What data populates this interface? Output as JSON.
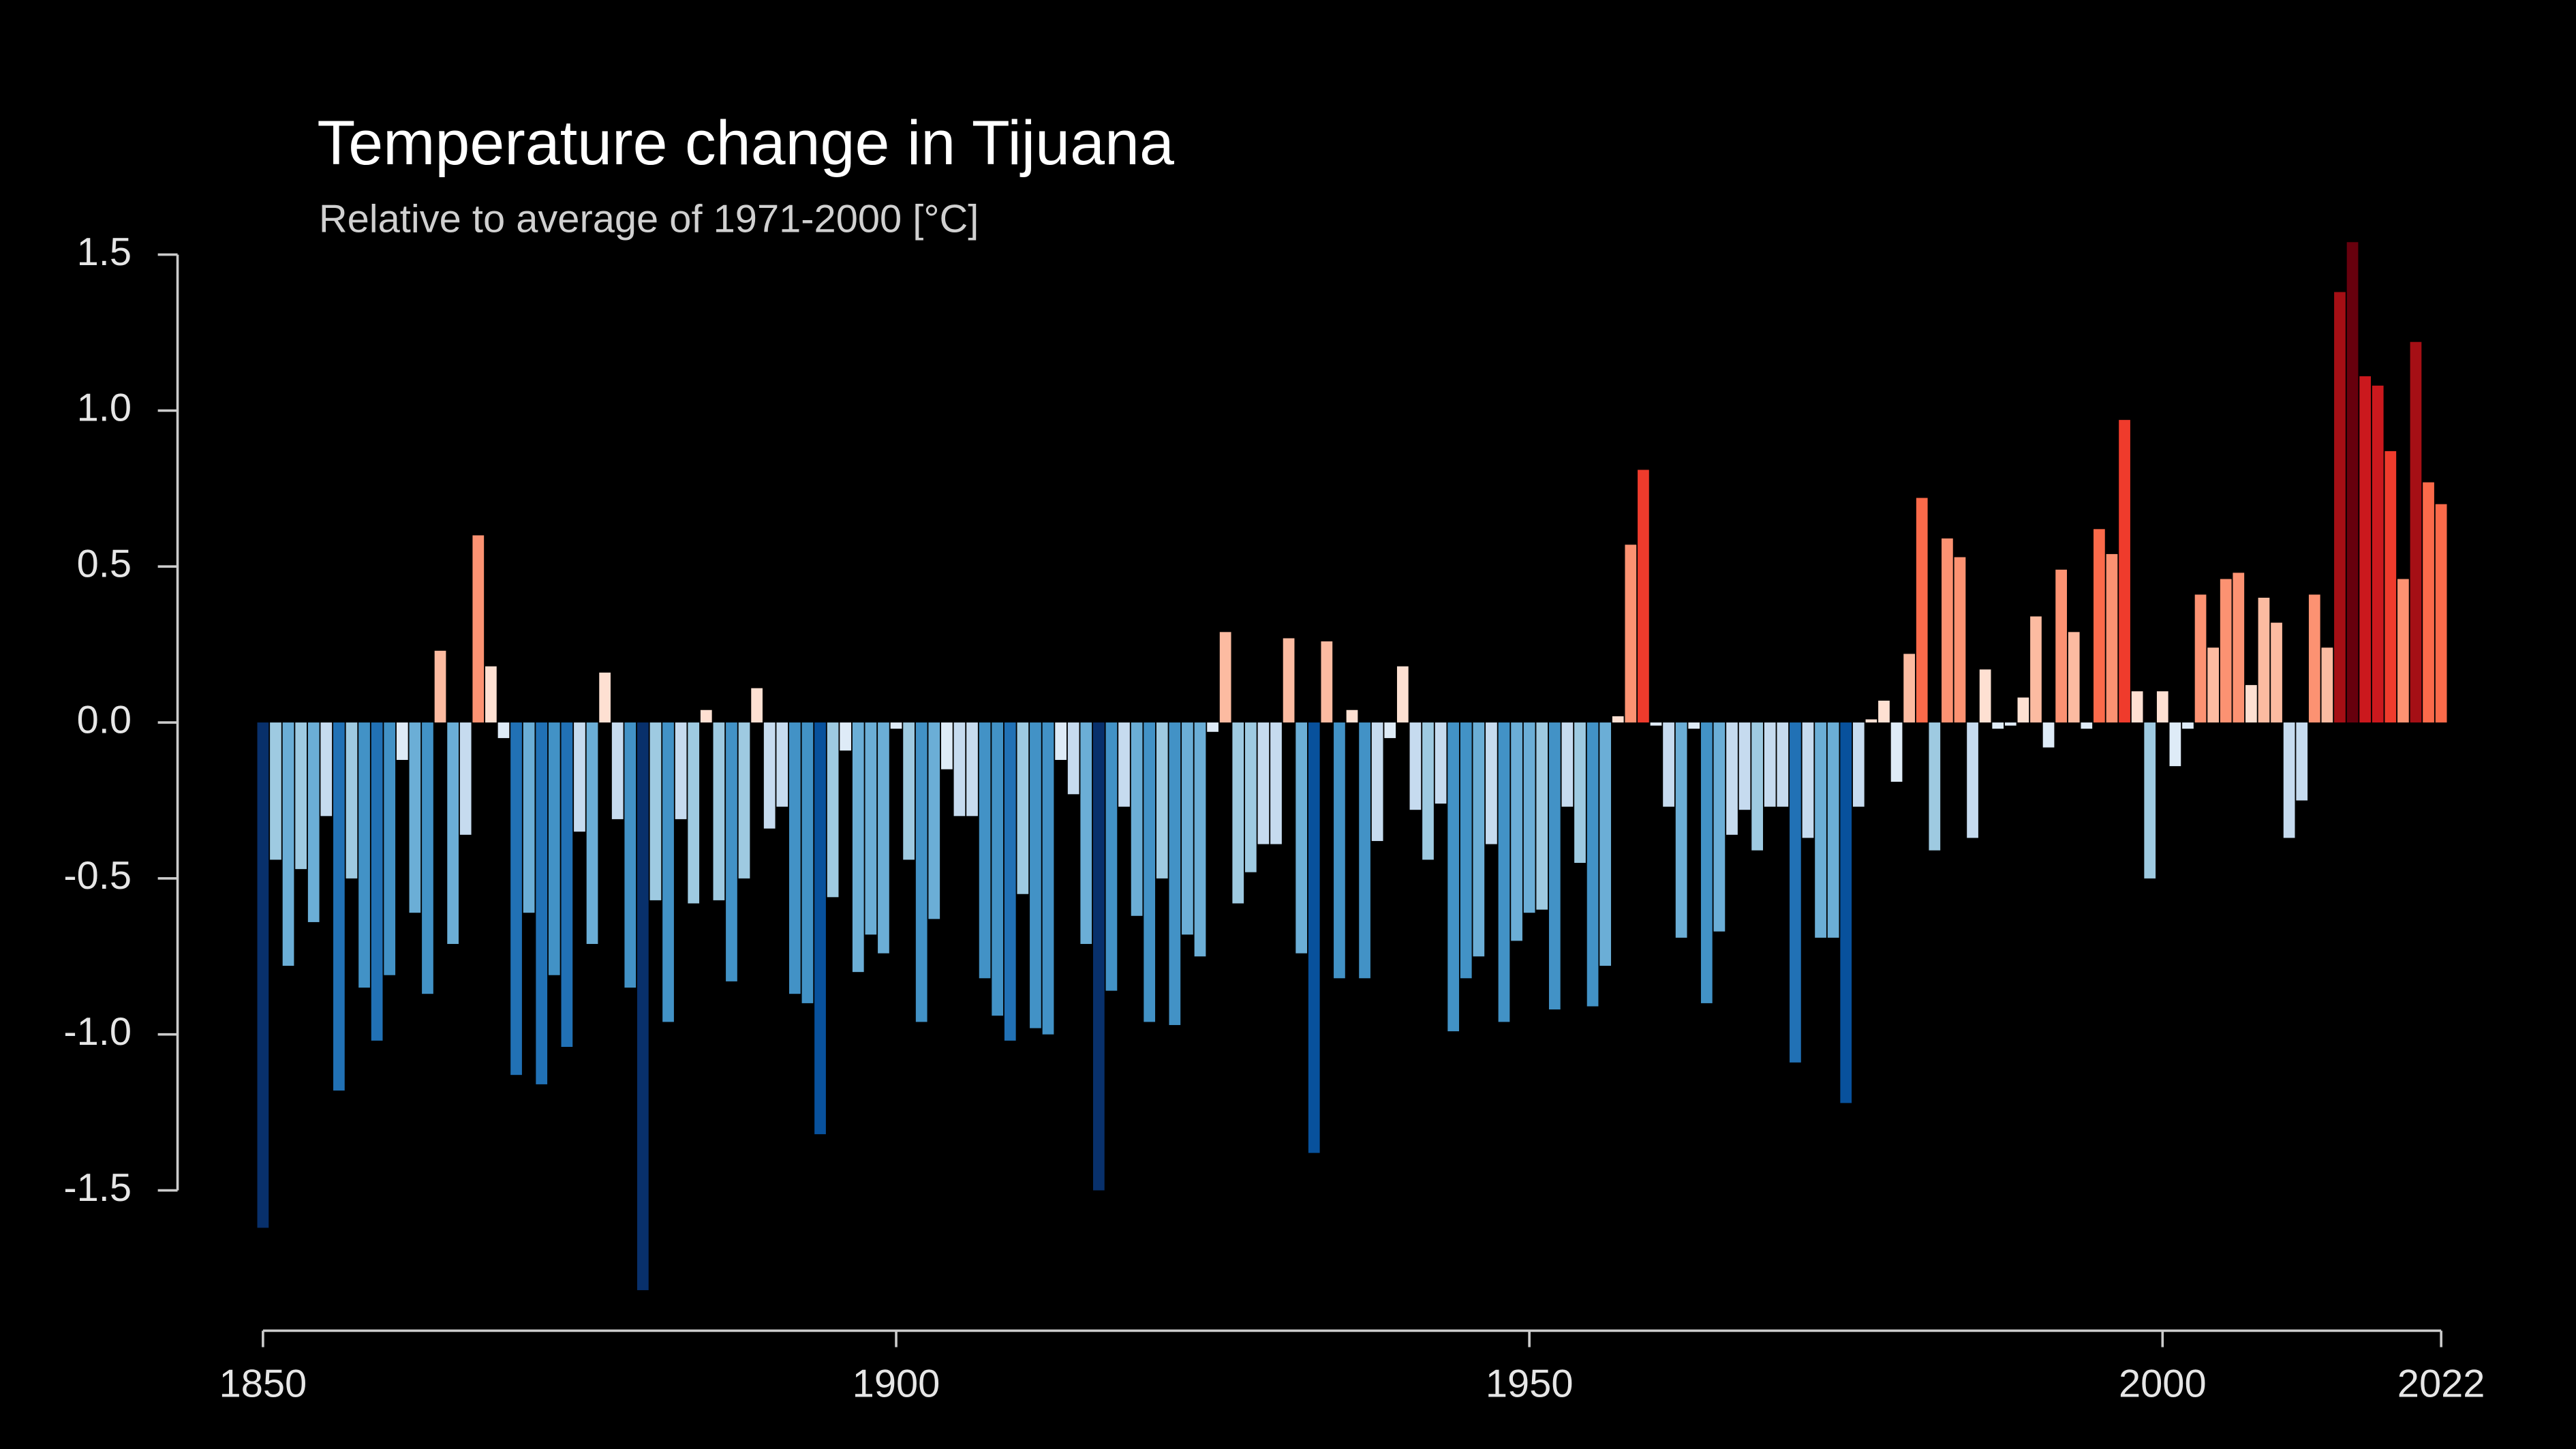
{
  "chart_data": {
    "type": "bar",
    "title": "Temperature change in Tijuana",
    "subtitle": "Relative to average of 1971-2000  [°C]",
    "x": [
      1850,
      1851,
      1852,
      1853,
      1854,
      1855,
      1856,
      1857,
      1858,
      1859,
      1860,
      1861,
      1862,
      1863,
      1864,
      1865,
      1866,
      1867,
      1868,
      1869,
      1870,
      1871,
      1872,
      1873,
      1874,
      1875,
      1876,
      1877,
      1878,
      1879,
      1880,
      1881,
      1882,
      1883,
      1884,
      1885,
      1886,
      1887,
      1888,
      1889,
      1890,
      1891,
      1892,
      1893,
      1894,
      1895,
      1896,
      1897,
      1898,
      1899,
      1900,
      1901,
      1902,
      1903,
      1904,
      1905,
      1906,
      1907,
      1908,
      1909,
      1910,
      1911,
      1912,
      1913,
      1914,
      1915,
      1916,
      1917,
      1918,
      1919,
      1920,
      1921,
      1922,
      1923,
      1924,
      1925,
      1926,
      1927,
      1928,
      1929,
      1930,
      1931,
      1932,
      1933,
      1934,
      1935,
      1936,
      1937,
      1938,
      1939,
      1940,
      1941,
      1942,
      1943,
      1944,
      1945,
      1946,
      1947,
      1948,
      1949,
      1950,
      1951,
      1952,
      1953,
      1954,
      1955,
      1956,
      1957,
      1958,
      1959,
      1960,
      1961,
      1962,
      1963,
      1964,
      1965,
      1966,
      1967,
      1968,
      1969,
      1970,
      1971,
      1972,
      1973,
      1974,
      1975,
      1976,
      1977,
      1978,
      1979,
      1980,
      1981,
      1982,
      1983,
      1984,
      1985,
      1986,
      1987,
      1988,
      1989,
      1990,
      1991,
      1992,
      1993,
      1994,
      1995,
      1996,
      1997,
      1998,
      1999,
      2000,
      2001,
      2002,
      2003,
      2004,
      2005,
      2006,
      2007,
      2008,
      2009,
      2010,
      2011,
      2012,
      2013,
      2014,
      2015,
      2016,
      2017,
      2018,
      2019,
      2020,
      2021,
      2022
    ],
    "values": [
      -1.62,
      -0.44,
      -0.78,
      -0.47,
      -0.64,
      -0.3,
      -1.18,
      -0.5,
      -0.85,
      -1.02,
      -0.81,
      -0.12,
      -0.61,
      -0.87,
      0.23,
      -0.71,
      -0.36,
      0.6,
      0.18,
      -0.05,
      -1.13,
      -0.61,
      -1.16,
      -0.81,
      -1.04,
      -0.35,
      -0.71,
      0.16,
      -0.31,
      -0.85,
      -1.82,
      -0.57,
      -0.96,
      -0.31,
      -0.58,
      0.04,
      -0.57,
      -0.83,
      -0.5,
      0.11,
      -0.34,
      -0.27,
      -0.87,
      -0.9,
      -1.32,
      -0.56,
      -0.09,
      -0.8,
      -0.68,
      -0.74,
      -0.02,
      -0.44,
      -0.96,
      -0.63,
      -0.15,
      -0.3,
      -0.3,
      -0.82,
      -0.94,
      -1.02,
      -0.55,
      -0.98,
      -1.0,
      -0.12,
      -0.23,
      -0.71,
      -1.5,
      -0.86,
      -0.27,
      -0.62,
      -0.96,
      -0.5,
      -0.97,
      -0.68,
      -0.75,
      -0.03,
      0.29,
      -0.58,
      -0.48,
      -0.39,
      -0.39,
      0.27,
      -0.74,
      -1.38,
      0.26,
      -0.82,
      0.04,
      -0.82,
      -0.38,
      -0.05,
      0.18,
      -0.28,
      -0.44,
      -0.26,
      -0.99,
      -0.82,
      -0.75,
      -0.39,
      -0.96,
      -0.7,
      -0.61,
      -0.6,
      -0.92,
      -0.27,
      -0.45,
      -0.91,
      -0.78,
      0.02,
      0.57,
      0.81,
      -0.01,
      -0.27,
      -0.69,
      -0.02,
      -0.9,
      -0.67,
      -0.36,
      -0.28,
      -0.41,
      -0.27,
      -0.27,
      -1.09,
      -0.37,
      -0.69,
      -0.69,
      -1.22,
      -0.27,
      0.01,
      0.07,
      -0.19,
      0.22,
      0.72,
      -0.41,
      0.59,
      0.53,
      -0.37,
      0.17,
      -0.02,
      -0.01,
      0.08,
      0.34,
      -0.08,
      0.49,
      0.29,
      -0.02,
      0.62,
      0.54,
      0.97,
      0.1,
      -0.5,
      0.1,
      -0.14,
      -0.02,
      0.41,
      0.24,
      0.46,
      0.48,
      0.12,
      0.4,
      0.32,
      -0.37,
      -0.25,
      0.41,
      0.24,
      1.38,
      1.54,
      1.11,
      1.08,
      0.87,
      0.46,
      1.22,
      0.77,
      0.7
    ],
    "palette": [
      "#08306b",
      "#08519c",
      "#2171b5",
      "#4292c6",
      "#6baed6",
      "#9ecae1",
      "#c6dbef",
      "#deebf7",
      "#fee0d2",
      "#fcbba1",
      "#fc9272",
      "#fb6a4a",
      "#ef3b2c",
      "#cb181d",
      "#a50f15",
      "#67000d"
    ],
    "xlim": [
      1850,
      2022
    ],
    "xticks": [
      1850,
      1900,
      1950,
      2000,
      2022
    ],
    "ylim": [
      -1.95,
      1.6
    ],
    "yticks": [
      {
        "value": -1.5,
        "label": "-1.5"
      },
      {
        "value": -1,
        "label": "-1.0"
      },
      {
        "value": -0.5,
        "label": "-0.5"
      },
      {
        "value": 0,
        "label": "0.0"
      },
      {
        "value": 0.5,
        "label": "0.5"
      },
      {
        "value": 1,
        "label": "1.0"
      },
      {
        "value": 1.5,
        "label": "1.5"
      }
    ]
  }
}
